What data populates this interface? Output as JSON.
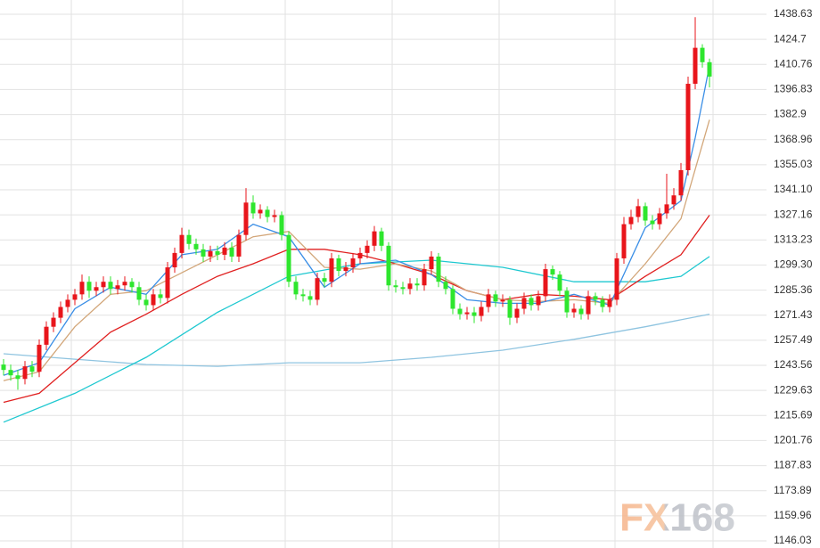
{
  "chart_data": {
    "type": "candlestick",
    "watermark": "FX168",
    "up_color": "#e8151b",
    "down_color": "#2ee62e",
    "xlim": [
      -0.5,
      107
    ],
    "ylim": [
      1146.03,
      1438.63
    ],
    "yticks": [
      1146.03,
      1159.96,
      1173.89,
      1187.83,
      1201.76,
      1215.69,
      1229.63,
      1243.56,
      1257.49,
      1271.43,
      1285.36,
      {
        "value": 1299.3,
        "label": "1299.30"
      },
      1313.23,
      1327.16,
      {
        "value": 1341.1,
        "label": "1341.10"
      },
      1355.03,
      1368.96,
      1382.9,
      1396.83,
      1410.76,
      1424.7,
      1438.63
    ],
    "grid": true,
    "open": [
      1244,
      1241,
      1238,
      1236,
      1243,
      1240,
      1255,
      1265,
      1270,
      1276,
      1280,
      1283,
      1290,
      1285,
      1287,
      1290,
      1286,
      1288,
      1290,
      1287,
      1280,
      1277,
      1283,
      1281,
      1298,
      1306,
      1316,
      1311,
      1308,
      1304,
      1307,
      1305,
      1309,
      1304,
      1316,
      1334,
      1328,
      1330,
      1326,
      1327,
      1316,
      1290,
      1283,
      1282,
      1280,
      1292,
      1290,
      1303,
      1296,
      1298,
      1303,
      1306,
      1310,
      1318,
      1310,
      1288,
      1287,
      1286,
      1289,
      1288,
      1297,
      1304,
      1290,
      1286,
      1275,
      1272,
      1273,
      1271,
      1276,
      1283,
      1279,
      1280,
      1270,
      1275,
      1281,
      1277,
      1282,
      1297,
      1294,
      1285,
      1273,
      1275,
      1272,
      1282,
      1280,
      1276,
      1280,
      1303,
      1322,
      1326,
      1332,
      1324,
      1322,
      1328,
      1333,
      1338,
      1352,
      1400,
      1420,
      1412
    ],
    "high": [
      1247,
      1244,
      1241,
      1246,
      1246,
      1258,
      1268,
      1273,
      1279,
      1283,
      1286,
      1294,
      1293,
      1290,
      1293,
      1293,
      1291,
      1293,
      1292,
      1290,
      1283,
      1286,
      1286,
      1301,
      1309,
      1320,
      1319,
      1314,
      1311,
      1310,
      1310,
      1312,
      1312,
      1319,
      1342,
      1338,
      1333,
      1332,
      1330,
      1329,
      1318,
      1293,
      1286,
      1285,
      1295,
      1295,
      1306,
      1305,
      1301,
      1306,
      1309,
      1313,
      1321,
      1320,
      1312,
      1291,
      1290,
      1292,
      1292,
      1300,
      1307,
      1306,
      1293,
      1288,
      1278,
      1276,
      1276,
      1279,
      1286,
      1285,
      1283,
      1282,
      1278,
      1284,
      1283,
      1285,
      1300,
      1299,
      1296,
      1287,
      1278,
      1277,
      1285,
      1284,
      1282,
      1283,
      1306,
      1326,
      1330,
      1336,
      1334,
      1327,
      1331,
      1350,
      1342,
      1356,
      1404,
      1437,
      1422,
      1414
    ],
    "low": [
      1238,
      1235,
      1230,
      1233,
      1237,
      1237,
      1252,
      1262,
      1267,
      1273,
      1277,
      1280,
      1281,
      1282,
      1284,
      1283,
      1283,
      1285,
      1284,
      1277,
      1274,
      1274,
      1278,
      1278,
      1295,
      1303,
      1308,
      1305,
      1301,
      1301,
      1302,
      1302,
      1301,
      1301,
      1313,
      1325,
      1325,
      1323,
      1323,
      1313,
      1287,
      1280,
      1279,
      1277,
      1277,
      1287,
      1287,
      1293,
      1293,
      1295,
      1300,
      1303,
      1307,
      1307,
      1285,
      1284,
      1283,
      1283,
      1285,
      1285,
      1294,
      1287,
      1283,
      1272,
      1269,
      1269,
      1267,
      1268,
      1273,
      1276,
      1276,
      1266,
      1267,
      1272,
      1274,
      1274,
      1279,
      1291,
      1282,
      1270,
      1270,
      1269,
      1269,
      1277,
      1273,
      1273,
      1277,
      1300,
      1319,
      1323,
      1321,
      1319,
      1319,
      1325,
      1330,
      1335,
      1349,
      1397,
      1409,
      1398
    ],
    "close": [
      1241,
      1238,
      1236,
      1243,
      1240,
      1255,
      1265,
      1270,
      1276,
      1280,
      1283,
      1290,
      1285,
      1287,
      1290,
      1286,
      1288,
      1290,
      1287,
      1280,
      1277,
      1283,
      1281,
      1298,
      1306,
      1316,
      1311,
      1308,
      1304,
      1307,
      1305,
      1309,
      1304,
      1316,
      1334,
      1328,
      1330,
      1326,
      1327,
      1316,
      1290,
      1283,
      1282,
      1280,
      1292,
      1290,
      1303,
      1296,
      1298,
      1303,
      1306,
      1310,
      1318,
      1310,
      1288,
      1287,
      1286,
      1289,
      1288,
      1297,
      1304,
      1290,
      1286,
      1275,
      1272,
      1273,
      1271,
      1276,
      1283,
      1279,
      1280,
      1270,
      1275,
      1281,
      1277,
      1282,
      1297,
      1294,
      1285,
      1273,
      1275,
      1272,
      1282,
      1280,
      1276,
      1280,
      1303,
      1322,
      1326,
      1332,
      1324,
      1322,
      1328,
      1333,
      1338,
      1352,
      1400,
      1420,
      1412,
      1404
    ],
    "lines": [
      {
        "color": "#8fc4e0",
        "x": [
          0,
          10,
          20,
          30,
          40,
          50,
          60,
          70,
          80,
          90,
          99
        ],
        "values": [
          1250,
          1247,
          1244,
          1243,
          1245,
          1245,
          1248,
          1252,
          1258,
          1265,
          1272
        ]
      },
      {
        "color": "#1ec8d0",
        "x": [
          0,
          10,
          20,
          30,
          40,
          50,
          60,
          70,
          80,
          90,
          95,
          99
        ],
        "values": [
          1212,
          1228,
          1248,
          1273,
          1293,
          1300,
          1302,
          1298,
          1290,
          1290,
          1293,
          1304
        ]
      },
      {
        "color": "#e02020",
        "x": [
          0,
          5,
          10,
          15,
          20,
          25,
          30,
          35,
          40,
          45,
          50,
          55,
          60,
          65,
          70,
          75,
          80,
          85,
          90,
          95,
          99
        ],
        "values": [
          1223,
          1228,
          1245,
          1262,
          1272,
          1283,
          1293,
          1300,
          1308,
          1308,
          1305,
          1300,
          1294,
          1285,
          1280,
          1283,
          1282,
          1280,
          1293,
          1305,
          1327
        ]
      },
      {
        "color": "#d2a679",
        "x": [
          0,
          5,
          10,
          15,
          20,
          25,
          30,
          35,
          40,
          45,
          50,
          55,
          60,
          65,
          70,
          75,
          80,
          85,
          90,
          95,
          99
        ],
        "values": [
          1235,
          1240,
          1265,
          1283,
          1285,
          1295,
          1305,
          1315,
          1318,
          1298,
          1297,
          1300,
          1296,
          1285,
          1280,
          1279,
          1280,
          1278,
          1300,
          1325,
          1380
        ]
      },
      {
        "color": "#3a8ee6",
        "x": [
          0,
          5,
          10,
          15,
          20,
          25,
          30,
          35,
          40,
          45,
          50,
          55,
          60,
          65,
          70,
          75,
          80,
          85,
          90,
          95,
          97,
          99
        ],
        "values": [
          1238,
          1245,
          1275,
          1287,
          1283,
          1305,
          1308,
          1322,
          1315,
          1287,
          1300,
          1302,
          1294,
          1280,
          1278,
          1278,
          1283,
          1277,
          1320,
          1335,
          1370,
          1410
        ]
      }
    ]
  }
}
